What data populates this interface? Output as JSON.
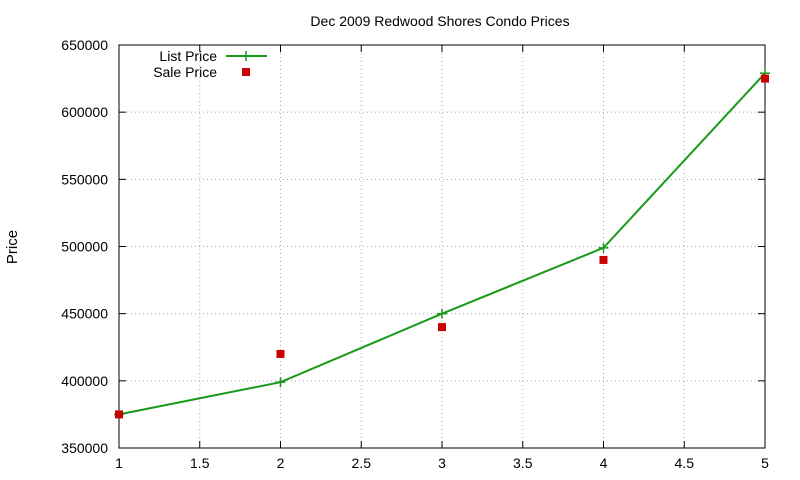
{
  "chart_data": {
    "type": "line",
    "title": "Dec 2009 Redwood Shores Condo Prices",
    "xlabel": "",
    "ylabel": "Price",
    "xlim": [
      1,
      5
    ],
    "ylim": [
      350000,
      650000
    ],
    "xticks": [
      "1",
      "1.5",
      "2",
      "2.5",
      "3",
      "3.5",
      "4",
      "4.5",
      "5"
    ],
    "yticks": [
      "350000",
      "400000",
      "450000",
      "500000",
      "550000",
      "600000",
      "650000"
    ],
    "grid": true,
    "legend_position": "top-left",
    "series": [
      {
        "name": "List Price",
        "style": "linespoints",
        "marker": "plus",
        "color": "#1a9a1a",
        "x": [
          1,
          2,
          3,
          4,
          5
        ],
        "y": [
          375000,
          399000,
          450000,
          499000,
          629000
        ]
      },
      {
        "name": "Sale Price",
        "style": "points",
        "marker": "square",
        "color": "#cc0000",
        "x": [
          1,
          2,
          3,
          4,
          5
        ],
        "y": [
          375000,
          420000,
          440000,
          490000,
          625000
        ]
      }
    ]
  }
}
